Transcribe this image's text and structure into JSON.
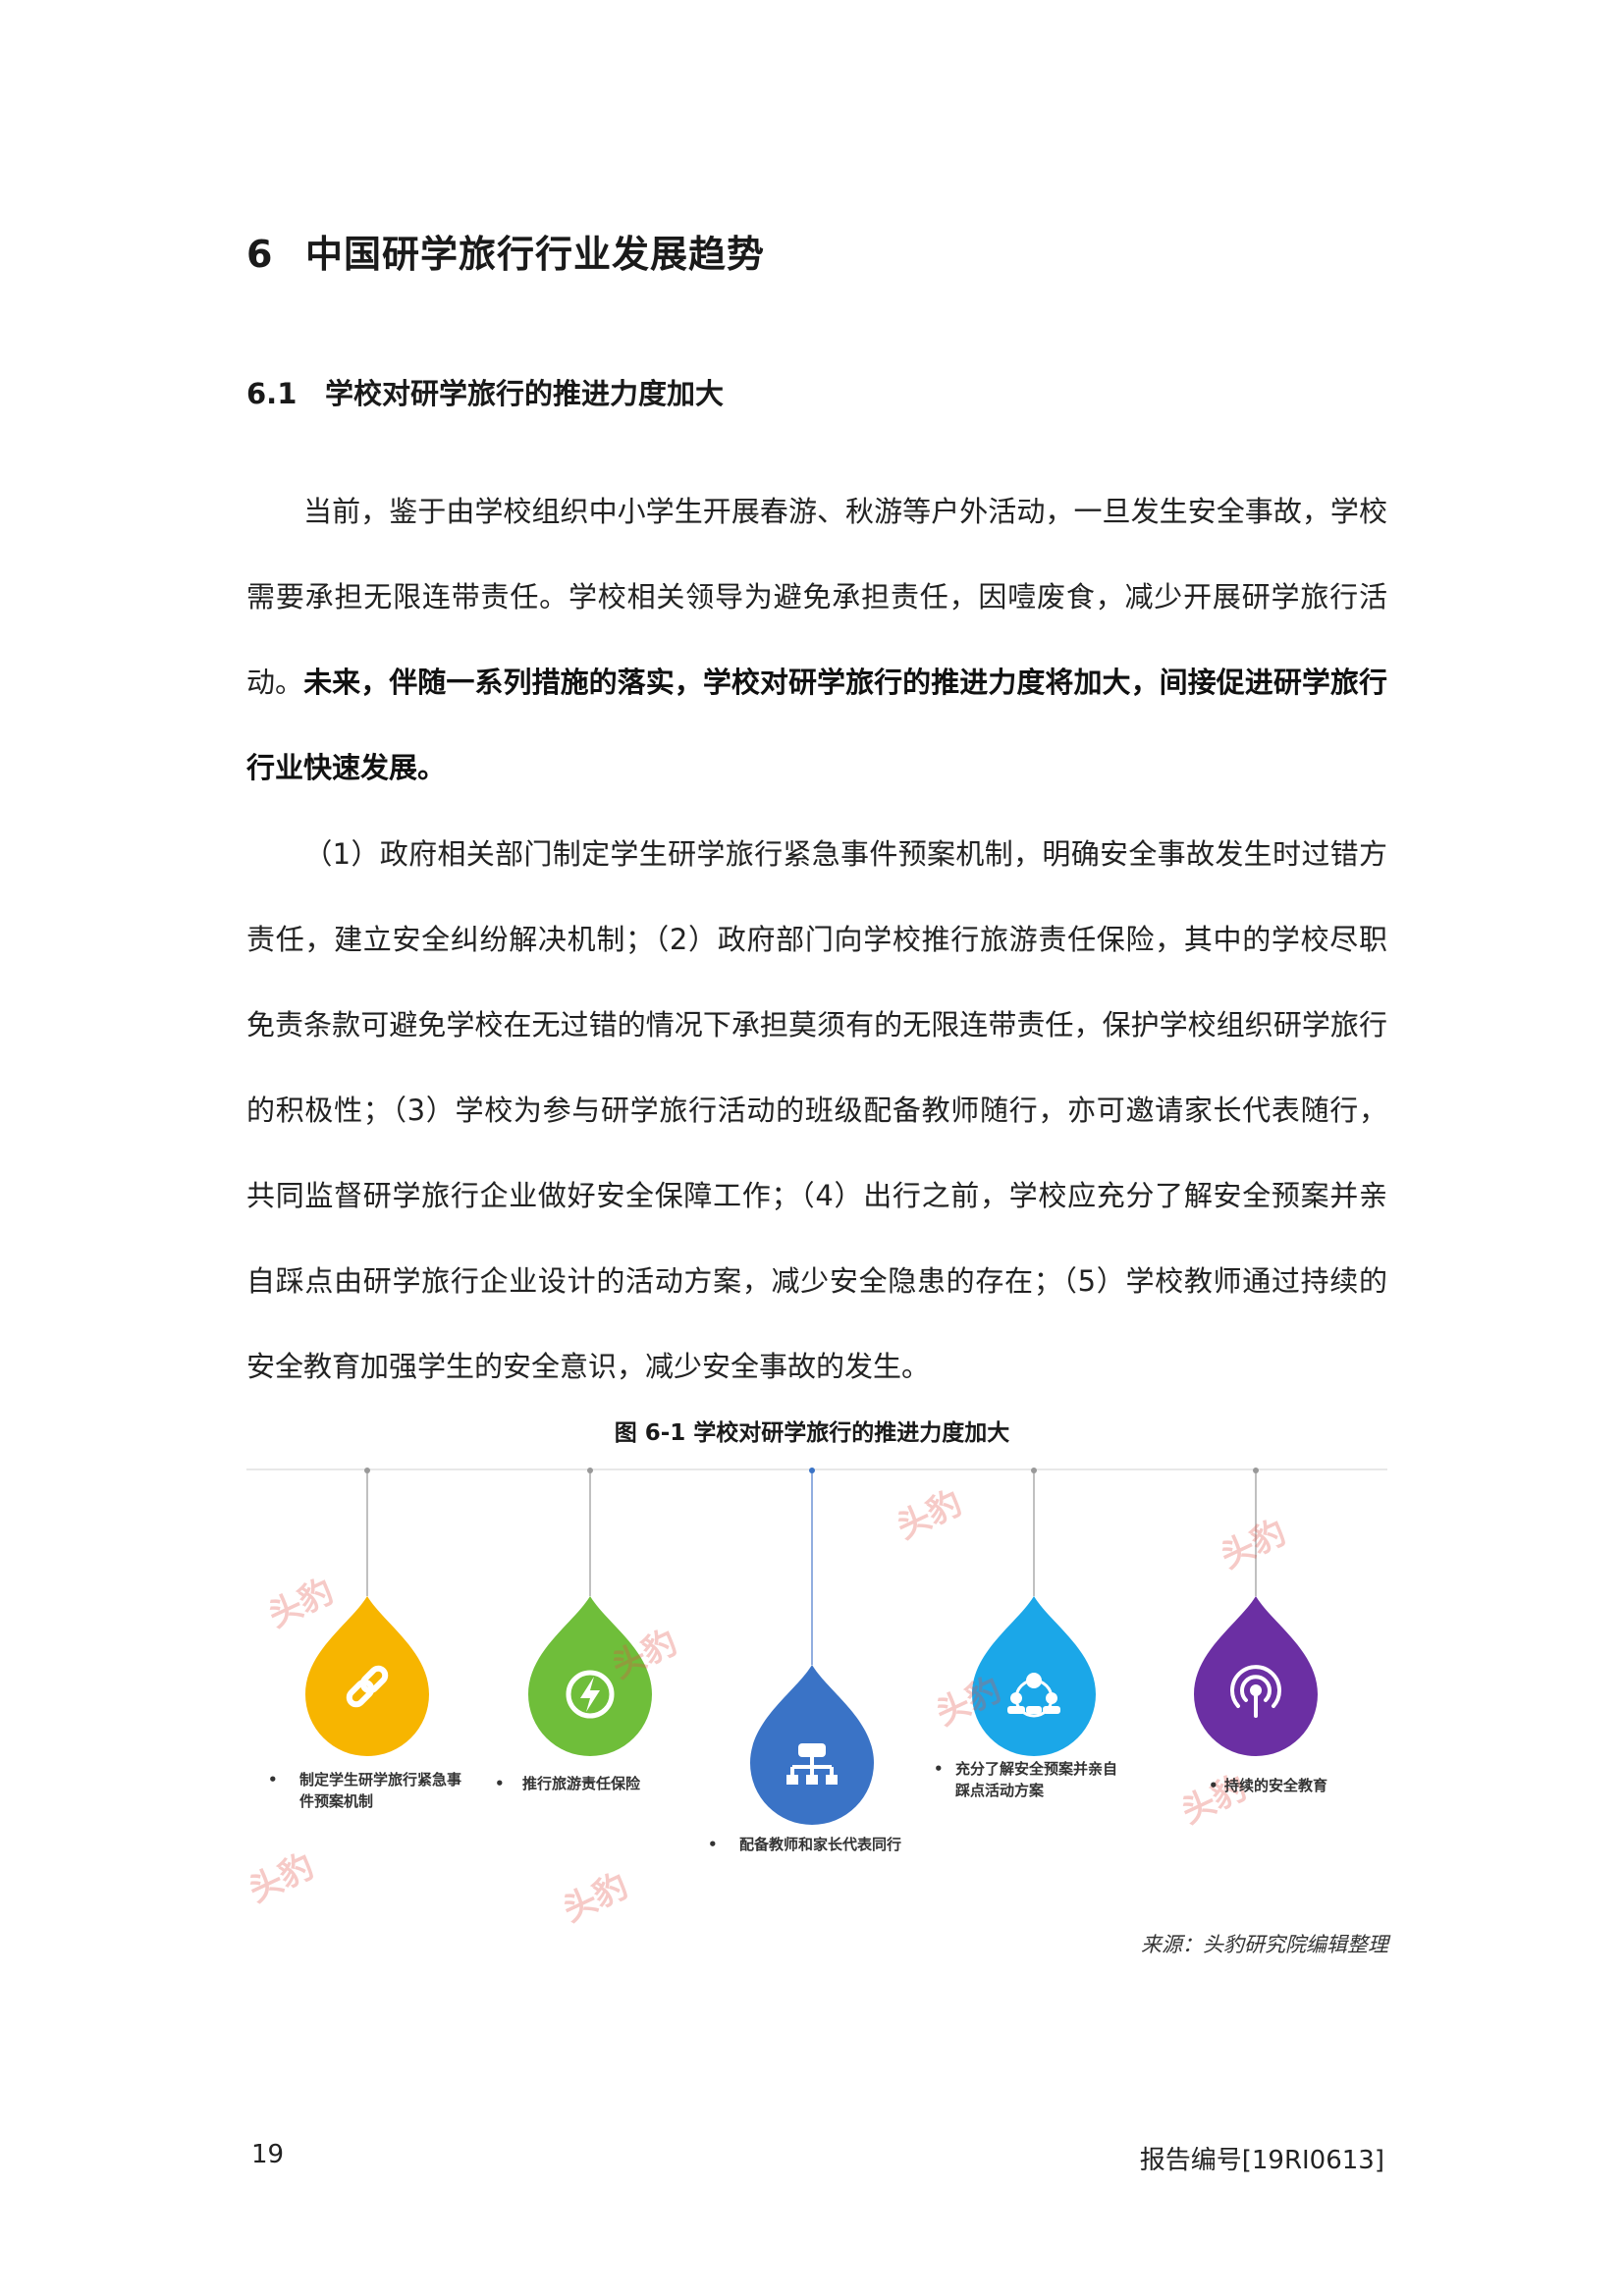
{
  "chapter": {
    "number": "6",
    "title": "中国研学旅行行业发展趋势"
  },
  "section": {
    "number": "6.1",
    "title": "学校对研学旅行的推进力度加大"
  },
  "paragraph1": {
    "normal": "当前，鉴于由学校组织中小学生开展春游、秋游等户外活动，一旦发生安全事故，学校需要承担无限连带责任。学校相关领导为避免承担责任，因噎废食，减少开展研学旅行活动。",
    "bold": "未来，伴随一系列措施的落实，学校对研学旅行的推进力度将加大，间接促进研学旅行行业快速发展。"
  },
  "paragraph2": "（1）政府相关部门制定学生研学旅行紧急事件预案机制，明确安全事故发生时过错方责任，建立安全纠纷解决机制；（2）政府部门向学校推行旅游责任保险，其中的学校尽职免责条款可避免学校在无过错的情况下承担莫须有的无限连带责任，保护学校组织研学旅行的积极性；（3）学校为参与研学旅行活动的班级配备教师随行，亦可邀请家长代表随行，共同监督研学旅行企业做好安全保障工作；（4）出行之前，学校应充分了解安全预案并亲自踩点由研学旅行企业设计的活动方案，减少安全隐患的存在；（5）学校教师通过持续的安全教育加强学生的安全意识，减少安全事故的发生。",
  "figure": {
    "title": "图 6-1 学校对研学旅行的推进力度加大",
    "items": [
      {
        "line1": "制定学生研学旅行紧急事",
        "line2": "件预案机制",
        "color": "#f7b500",
        "icon": "link-icon"
      },
      {
        "line1": "推行旅游责任保险",
        "line2": "",
        "color": "#6fbe3a",
        "icon": "lightning-icon"
      },
      {
        "line1": "配备教师和家长代表同行",
        "line2": "",
        "color": "#3a73c6",
        "icon": "network-icon"
      },
      {
        "line1": "充分了解安全预案并亲自",
        "line2": "踩点活动方案",
        "color": "#1ba7e8",
        "icon": "people-icon"
      },
      {
        "line1": "持续的安全教育",
        "line2": "",
        "color": "#6b2fa3",
        "icon": "broadcast-icon"
      }
    ],
    "bullet": "•",
    "watermark": "头豹"
  },
  "source": "来源：头豹研究院编辑整理",
  "footer": {
    "page": "19",
    "report_code": "报告编号[19RI0613]"
  }
}
